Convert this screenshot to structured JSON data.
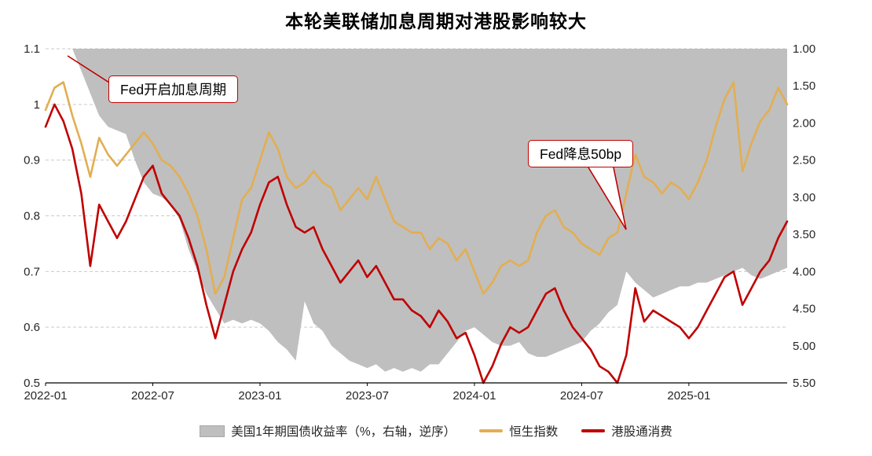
{
  "title": "本轮美联储加息周期对港股影响较大",
  "chart_data": {
    "type": "mixed",
    "title": "本轮美联储加息周期对港股影响较大",
    "x_unit": "months since 2022-01",
    "x_min": 0,
    "x_max": 41.5,
    "x_step": 0.5,
    "x_ticks": [
      {
        "label": "2022-01",
        "t": 0
      },
      {
        "label": "2022-07",
        "t": 6
      },
      {
        "label": "2023-01",
        "t": 12
      },
      {
        "label": "2023-07",
        "t": 18
      },
      {
        "label": "2024-01",
        "t": 24
      },
      {
        "label": "2024-07",
        "t": 30
      },
      {
        "label": "2025-01",
        "t": 36
      }
    ],
    "left_axis": {
      "min": 0.5,
      "max": 1.1,
      "ticks": [
        {
          "label": "1.1",
          "v": 1.1
        },
        {
          "label": "1",
          "v": 1.0
        },
        {
          "label": "0.9",
          "v": 0.9
        },
        {
          "label": "0.8",
          "v": 0.8
        },
        {
          "label": "0.7",
          "v": 0.7
        },
        {
          "label": "0.6",
          "v": 0.6
        },
        {
          "label": "0.5",
          "v": 0.5
        }
      ]
    },
    "right_axis": {
      "min": 1.0,
      "max": 5.5,
      "inverted": true,
      "ticks": [
        {
          "label": "1.00",
          "v": 1.0
        },
        {
          "label": "1.50",
          "v": 1.5
        },
        {
          "label": "2.00",
          "v": 2.0
        },
        {
          "label": "2.50",
          "v": 2.5
        },
        {
          "label": "3.00",
          "v": 3.0
        },
        {
          "label": "3.50",
          "v": 3.5
        },
        {
          "label": "4.00",
          "v": 4.0
        },
        {
          "label": "4.50",
          "v": 4.5
        },
        {
          "label": "5.00",
          "v": 5.0
        },
        {
          "label": "5.50",
          "v": 5.5
        }
      ]
    },
    "grid": "horizontal-dashed",
    "legend_position": "bottom",
    "annotation_color": "#c00000",
    "annotations": [
      {
        "text": "Fed开启加息周期"
      },
      {
        "text": "Fed降息50bp"
      }
    ],
    "series": [
      {
        "name": "美国1年期国债收益率（%，右轴，逆序）",
        "type": "area",
        "axis": "right",
        "color": "#bfbfbf",
        "values": [
          0.4,
          0.55,
          0.8,
          1.0,
          1.3,
          1.6,
          1.9,
          2.05,
          2.1,
          2.15,
          2.5,
          2.8,
          2.95,
          3.0,
          3.1,
          3.3,
          3.7,
          4.0,
          4.3,
          4.5,
          4.7,
          4.65,
          4.7,
          4.65,
          4.7,
          4.8,
          4.95,
          5.05,
          5.2,
          4.4,
          4.7,
          4.8,
          5.0,
          5.1,
          5.2,
          5.25,
          5.3,
          5.25,
          5.35,
          5.3,
          5.35,
          5.3,
          5.35,
          5.25,
          5.25,
          5.1,
          4.95,
          4.8,
          4.75,
          4.85,
          4.95,
          5.0,
          5.0,
          4.95,
          5.1,
          5.15,
          5.15,
          5.1,
          5.05,
          5.0,
          4.95,
          4.8,
          4.7,
          4.55,
          4.45,
          4.0,
          4.15,
          4.25,
          4.35,
          4.3,
          4.25,
          4.2,
          4.2,
          4.15,
          4.15,
          4.1,
          4.05,
          4.0,
          3.95,
          4.05,
          4.1,
          4.05,
          4.0,
          3.95
        ]
      },
      {
        "name": "恒生指数",
        "type": "line",
        "axis": "left",
        "color": "#e2ae52",
        "values": [
          0.99,
          1.03,
          1.04,
          0.98,
          0.93,
          0.87,
          0.94,
          0.91,
          0.89,
          0.91,
          0.93,
          0.95,
          0.93,
          0.9,
          0.89,
          0.87,
          0.84,
          0.8,
          0.74,
          0.66,
          0.69,
          0.76,
          0.83,
          0.85,
          0.9,
          0.95,
          0.92,
          0.87,
          0.85,
          0.86,
          0.88,
          0.86,
          0.85,
          0.81,
          0.83,
          0.85,
          0.83,
          0.87,
          0.83,
          0.79,
          0.78,
          0.77,
          0.77,
          0.74,
          0.76,
          0.75,
          0.72,
          0.74,
          0.7,
          0.66,
          0.68,
          0.71,
          0.72,
          0.71,
          0.72,
          0.77,
          0.8,
          0.81,
          0.78,
          0.77,
          0.75,
          0.74,
          0.73,
          0.76,
          0.77,
          0.84,
          0.91,
          0.87,
          0.86,
          0.84,
          0.86,
          0.85,
          0.83,
          0.86,
          0.9,
          0.96,
          1.01,
          1.04,
          0.88,
          0.93,
          0.97,
          0.99,
          1.03,
          1.0
        ]
      },
      {
        "name": "港股通消费",
        "type": "line",
        "axis": "left",
        "color": "#c00000",
        "values": [
          0.96,
          1.0,
          0.97,
          0.92,
          0.84,
          0.71,
          0.82,
          0.79,
          0.76,
          0.79,
          0.83,
          0.87,
          0.89,
          0.84,
          0.82,
          0.8,
          0.76,
          0.71,
          0.64,
          0.58,
          0.64,
          0.7,
          0.74,
          0.77,
          0.82,
          0.86,
          0.87,
          0.82,
          0.78,
          0.77,
          0.78,
          0.74,
          0.71,
          0.68,
          0.7,
          0.72,
          0.69,
          0.71,
          0.68,
          0.65,
          0.65,
          0.63,
          0.62,
          0.6,
          0.63,
          0.61,
          0.58,
          0.59,
          0.55,
          0.5,
          0.53,
          0.57,
          0.6,
          0.59,
          0.6,
          0.63,
          0.66,
          0.67,
          0.63,
          0.6,
          0.58,
          0.56,
          0.53,
          0.52,
          0.5,
          0.55,
          0.67,
          0.61,
          0.63,
          0.62,
          0.61,
          0.6,
          0.58,
          0.6,
          0.63,
          0.66,
          0.69,
          0.7,
          0.64,
          0.67,
          0.7,
          0.72,
          0.76,
          0.79
        ]
      }
    ]
  }
}
